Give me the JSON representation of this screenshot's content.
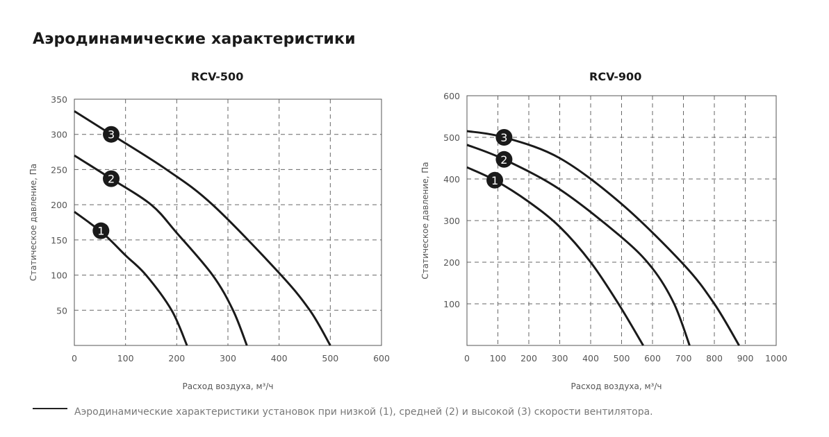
{
  "page_title": "Аэродинамические характеристики",
  "legend_text": "Аэродинамические характеристики установок при низкой (1), средней (2) и высокой (3) скорости вентилятора.",
  "chart_data": [
    {
      "type": "line",
      "title": "RCV-500",
      "xlabel": "Расход воздуха, м³/ч",
      "ylabel": "Статическое давление, Па",
      "xlim": [
        0,
        600
      ],
      "ylim": [
        0,
        350
      ],
      "xticks": [
        0,
        100,
        200,
        300,
        400,
        500,
        600
      ],
      "yticks": [
        50,
        100,
        150,
        200,
        250,
        300,
        350
      ],
      "grid": true,
      "series": [
        {
          "name": "1",
          "x": [
            0,
            55,
            100,
            140,
            190,
            220
          ],
          "y": [
            190,
            160,
            128,
            100,
            50,
            0
          ],
          "label_at": [
            52,
            163
          ]
        },
        {
          "name": "2",
          "x": [
            0,
            72,
            150,
            200,
            270,
            310,
            337
          ],
          "y": [
            270,
            237,
            200,
            160,
            100,
            50,
            0
          ],
          "label_at": [
            72,
            237
          ]
        },
        {
          "name": "3",
          "x": [
            0,
            72,
            180,
            270,
            400,
            460,
            500
          ],
          "y": [
            333,
            300,
            250,
            200,
            103,
            50,
            0
          ],
          "label_at": [
            72,
            300
          ]
        }
      ]
    },
    {
      "type": "line",
      "title": "RCV-900",
      "xlabel": "Расход воздуха, м³/ч",
      "ylabel": "Статическое давление, Па",
      "xlim": [
        0,
        1000
      ],
      "ylim": [
        0,
        600
      ],
      "xticks": [
        0,
        100,
        200,
        300,
        400,
        500,
        600,
        700,
        800,
        900,
        1000
      ],
      "yticks": [
        100,
        200,
        300,
        400,
        500,
        600
      ],
      "grid": true,
      "series": [
        {
          "name": "1",
          "x": [
            0,
            90,
            200,
            300,
            400,
            490,
            570
          ],
          "y": [
            428,
            397,
            345,
            285,
            200,
            100,
            0
          ],
          "label_at": [
            90,
            397
          ]
        },
        {
          "name": "2",
          "x": [
            0,
            120,
            300,
            500,
            600,
            670,
            720
          ],
          "y": [
            482,
            447,
            375,
            260,
            185,
            100,
            0
          ],
          "label_at": [
            120,
            447
          ]
        },
        {
          "name": "3",
          "x": [
            0,
            120,
            300,
            500,
            700,
            800,
            880
          ],
          "y": [
            515,
            500,
            450,
            340,
            195,
            100,
            0
          ],
          "label_at": [
            120,
            500
          ]
        }
      ]
    }
  ]
}
